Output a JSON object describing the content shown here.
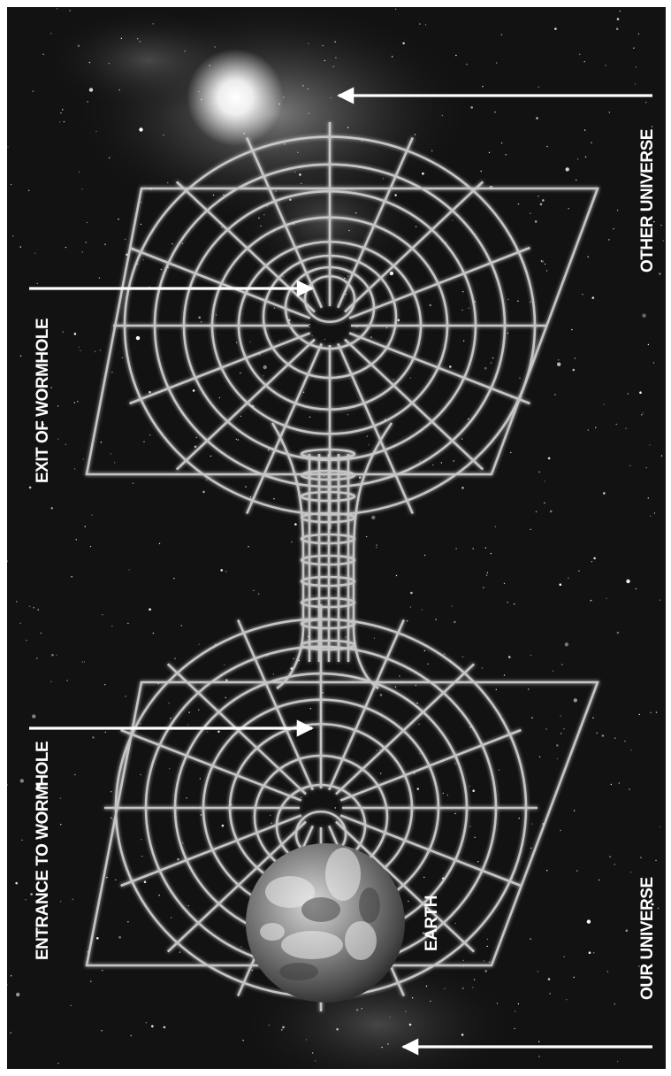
{
  "labels": {
    "entrance": "ENTRANCE TO WORMHOLE",
    "exit": "EXIT OF WORMHOLE",
    "earth": "EARTH",
    "our_universe": "OUR UNIVERSE",
    "other_universe": "OTHER UNIVERSE"
  },
  "colors": {
    "space": "#121212",
    "grid": "#cfcfcf",
    "text": "#ffffff"
  }
}
